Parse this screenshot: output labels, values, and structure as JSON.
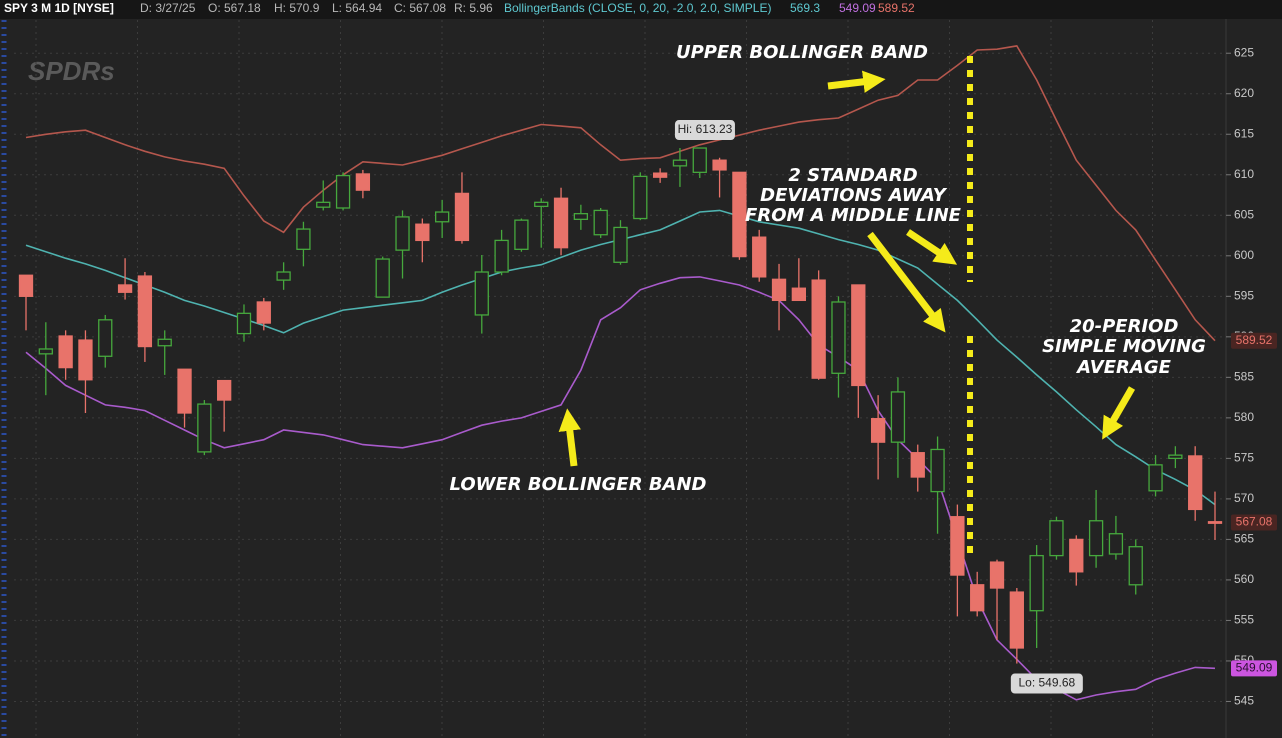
{
  "header": {
    "symbol": "SPY 3 M 1D [NYSE]",
    "items": [
      "D: 3/27/25",
      "O: 567.18",
      "H: 570.9",
      "L: 564.94",
      "C: 567.08",
      "R: 5.96"
    ],
    "study": "BollingerBands (CLOSE, 0, 20, -2.0, 2.0, SIMPLE)",
    "study_values": [
      "569.3",
      "549.09",
      "589.52"
    ]
  },
  "logo": "SPDRs",
  "annotations": {
    "upper": "UPPER BOLLINGER BAND",
    "std": [
      "2 STANDARD",
      "DEVIATIONS AWAY",
      "FROM A MIDDLE LINE"
    ],
    "sma": [
      "20-PERIOD",
      "SIMPLE MOVING",
      "AVERAGE"
    ],
    "lower": "LOWER BOLLINGER BAND"
  },
  "chart_data": {
    "type": "candlestick",
    "categories": [
      null,
      null,
      null,
      null,
      null,
      null,
      null,
      null,
      null,
      null,
      null,
      null,
      null,
      null,
      null,
      null,
      null,
      null,
      null,
      null,
      null,
      null,
      null,
      null,
      null,
      null,
      null,
      null,
      null,
      null,
      null,
      null,
      null,
      null,
      null,
      null,
      null,
      null,
      null,
      null,
      null,
      null,
      null,
      null,
      null,
      null,
      null,
      null,
      null,
      null,
      null,
      null,
      null,
      null,
      null,
      null,
      null,
      null,
      null,
      null,
      null
    ],
    "open": [
      597.6,
      587.9,
      590.1,
      589.6,
      587.6,
      596.4,
      597.5,
      588.9,
      586.0,
      575.8,
      584.6,
      590.4,
      594.3,
      597.0,
      600.8,
      606.0,
      605.9,
      610.1,
      594.9,
      600.7,
      603.9,
      604.2,
      607.7,
      592.7,
      598.0,
      600.8,
      606.1,
      607.1,
      604.5,
      602.6,
      599.2,
      604.6,
      610.2,
      611.1,
      610.3,
      611.8,
      610.3,
      602.3,
      597.1,
      596.0,
      597.0,
      585.5,
      596.4,
      579.9,
      577.0,
      575.7,
      570.9,
      567.8,
      559.4,
      562.2,
      558.5,
      556.2,
      563.0,
      565.0,
      563.0,
      563.2,
      559.4,
      571.0,
      575.0,
      575.3,
      567.18
    ],
    "high": [
      597.6,
      591.8,
      590.8,
      590.8,
      592.7,
      599.7,
      598.0,
      590.8,
      586.0,
      582.2,
      584.6,
      594.0,
      594.8,
      599.2,
      604.2,
      609.3,
      610.3,
      610.6,
      599.9,
      605.6,
      604.6,
      606.9,
      610.3,
      600.1,
      603.2,
      604.6,
      607.1,
      608.4,
      606.3,
      605.9,
      604.4,
      610.3,
      610.8,
      613.3,
      613.23,
      612.1,
      610.3,
      603.2,
      599.0,
      599.7,
      598.2,
      595.0,
      596.4,
      582.8,
      585.0,
      576.7,
      577.7,
      569.3,
      561.0,
      562.5,
      559.0,
      564.3,
      567.8,
      565.5,
      571.1,
      567.9,
      565.0,
      575.4,
      576.5,
      576.5,
      570.9
    ],
    "low": [
      590.8,
      582.8,
      584.7,
      580.6,
      586.2,
      594.6,
      586.9,
      585.3,
      578.8,
      575.4,
      578.3,
      589.4,
      590.8,
      595.8,
      598.7,
      605.6,
      605.6,
      607.1,
      594.9,
      597.2,
      599.2,
      602.2,
      601.5,
      590.4,
      597.6,
      600.5,
      601.0,
      600.1,
      603.2,
      602.2,
      598.9,
      604.4,
      609.0,
      608.5,
      609.6,
      607.2,
      599.5,
      596.8,
      590.8,
      594.5,
      584.7,
      582.5,
      580.0,
      572.4,
      572.6,
      570.9,
      565.7,
      555.5,
      555.5,
      552.6,
      549.68,
      551.6,
      562.5,
      559.3,
      561.5,
      562.5,
      558.2,
      570.3,
      573.8,
      567.3,
      564.94
    ],
    "close": [
      595.0,
      588.5,
      586.2,
      584.7,
      592.1,
      595.5,
      588.8,
      589.7,
      580.6,
      581.7,
      582.2,
      592.9,
      591.7,
      598.0,
      603.3,
      606.6,
      609.9,
      608.1,
      599.6,
      604.8,
      601.9,
      605.4,
      601.9,
      598.0,
      601.9,
      604.4,
      606.6,
      601.0,
      605.2,
      605.6,
      603.5,
      609.8,
      609.7,
      611.8,
      613.3,
      610.6,
      599.9,
      597.4,
      594.5,
      594.5,
      584.9,
      594.3,
      584.0,
      577.0,
      583.2,
      572.7,
      576.1,
      560.6,
      556.2,
      559.0,
      551.6,
      563.0,
      567.3,
      561.0,
      567.3,
      565.7,
      564.1,
      574.2,
      575.4,
      568.7,
      567.08
    ],
    "up_color": "#46a83d",
    "down_color": "#e8736a",
    "series": [
      {
        "color": "#b5574d",
        "values": [
          614.6,
          615.0,
          615.3,
          615.5,
          614.6,
          613.7,
          612.9,
          612.2,
          611.7,
          611.3,
          610.8,
          607.4,
          604.3,
          602.9,
          606.0,
          608.1,
          610.0,
          611.6,
          611.4,
          611.2,
          611.8,
          612.4,
          613.2,
          614.0,
          614.8,
          615.5,
          616.2,
          616.0,
          615.8,
          613.7,
          611.8,
          612.0,
          612.1,
          612.9,
          613.7,
          614.3,
          614.9,
          615.5,
          616.0,
          616.5,
          616.8,
          617.0,
          618.1,
          619.2,
          619.8,
          621.7,
          621.7,
          623.5,
          625.4,
          625.5,
          625.9,
          621.7,
          616.7,
          611.8,
          608.7,
          605.6,
          603.2,
          599.5,
          595.8,
          592.1,
          589.52
        ]
      },
      {
        "color": "#4fb3b0",
        "values": [
          601.3,
          600.5,
          599.7,
          599.0,
          598.2,
          597.3,
          596.4,
          595.5,
          594.5,
          593.8,
          593.0,
          592.2,
          591.4,
          590.5,
          591.7,
          592.5,
          593.3,
          593.6,
          593.9,
          594.2,
          594.5,
          595.5,
          596.4,
          597.2,
          598.0,
          598.5,
          598.9,
          599.8,
          600.7,
          601.4,
          602.0,
          602.6,
          603.2,
          604.3,
          605.4,
          605.6,
          604.9,
          604.2,
          603.8,
          603.4,
          602.7,
          602.0,
          601.4,
          600.7,
          599.6,
          598.5,
          596.5,
          594.5,
          592.1,
          589.6,
          587.5,
          585.3,
          583.2,
          581.0,
          578.9,
          576.7,
          575.2,
          573.6,
          572.4,
          571.1,
          569.3
        ]
      },
      {
        "color": "#a95bcc",
        "values": [
          588.1,
          586.1,
          584.0,
          582.8,
          581.6,
          581.3,
          580.9,
          579.7,
          578.5,
          577.3,
          576.3,
          576.8,
          577.3,
          578.5,
          578.2,
          577.9,
          577.3,
          576.7,
          576.5,
          576.3,
          576.8,
          577.3,
          578.2,
          579.1,
          579.6,
          580.0,
          580.8,
          581.6,
          585.9,
          592.1,
          593.6,
          595.8,
          596.6,
          597.3,
          597.4,
          596.9,
          596.4,
          595.5,
          594.5,
          592.1,
          589.0,
          587.5,
          585.9,
          580.9,
          577.3,
          574.9,
          572.4,
          565.0,
          557.6,
          552.6,
          550.2,
          547.7,
          546.5,
          545.2,
          545.8,
          546.2,
          546.5,
          547.7,
          548.5,
          549.2,
          549.09
        ]
      }
    ],
    "hi_label": "Hi: 613.23",
    "lo_label": "Lo: 549.68",
    "ylim": [
      543.7,
      629.1
    ],
    "yticks": [
      545,
      550,
      555,
      560,
      565,
      570,
      575,
      580,
      585,
      590,
      595,
      600,
      605,
      610,
      615,
      620,
      625
    ],
    "grid": true
  }
}
